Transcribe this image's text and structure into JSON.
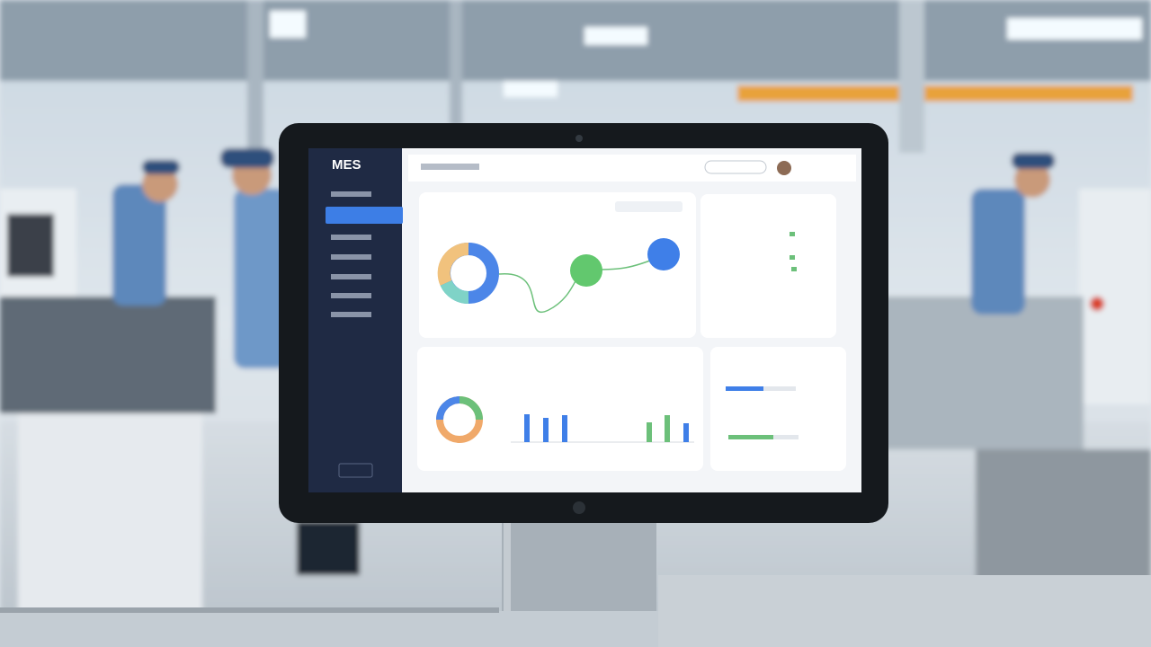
{
  "screen": {
    "logo": "MES"
  }
}
